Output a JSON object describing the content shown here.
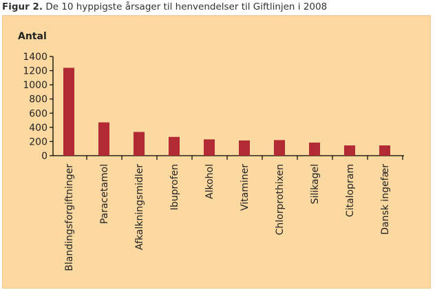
{
  "caption": {
    "label": "Figur 2.",
    "text": "De 10 hyppigste årsager til henvendelser til Giftlinjen i 2008"
  },
  "colors": {
    "panel_background": "#fcd9a0",
    "bar": "#b22a34",
    "axis": "#000000"
  },
  "chart_data": {
    "type": "bar",
    "title": "",
    "xlabel": "",
    "ylabel": "Antal",
    "ylim": [
      0,
      1400
    ],
    "yticks": [
      0,
      200,
      400,
      600,
      800,
      1000,
      1200,
      1400
    ],
    "grid": false,
    "categories": [
      "Blandingsforgiftninger",
      "Paracetamol",
      "Afkalkningsmidler",
      "Ibuprofen",
      "Alkohol",
      "Vitaminer",
      "Chlorprothixen",
      "Silikagel",
      "Citalopram",
      "Dansk ingefær"
    ],
    "values": [
      1240,
      470,
      335,
      265,
      230,
      215,
      220,
      185,
      145,
      145
    ]
  }
}
